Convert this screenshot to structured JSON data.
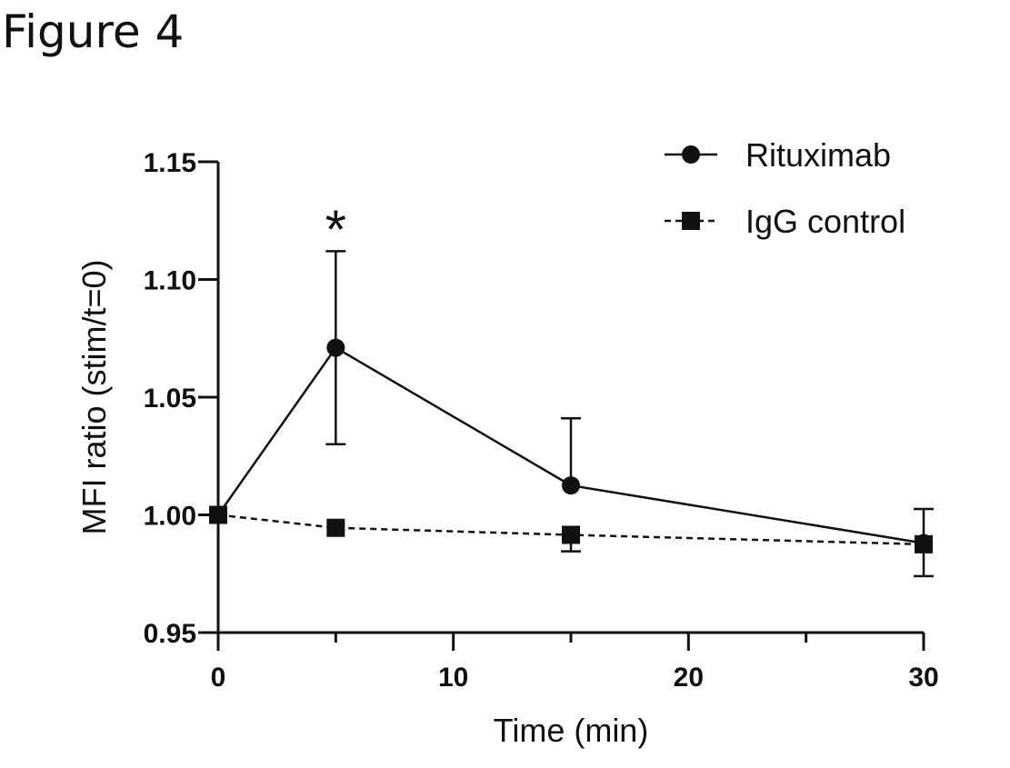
{
  "figure_title": "Figure 4",
  "chart_data": {
    "type": "line",
    "title": "",
    "xlabel": "Time (min)",
    "ylabel": "MFI ratio (stim/t=0)",
    "xlim": [
      0,
      30
    ],
    "ylim": [
      0.95,
      1.15
    ],
    "x_ticks": [
      0,
      10,
      20,
      30
    ],
    "x_tick_labels": [
      "0",
      "10",
      "20",
      "30"
    ],
    "x_minor_ticks": [
      5,
      15,
      25
    ],
    "y_ticks": [
      0.95,
      1.0,
      1.05,
      1.1,
      1.15
    ],
    "y_tick_labels": [
      "0.95",
      "1.00",
      "1.05",
      "1.10",
      "1.15"
    ],
    "legend_position": "top-right",
    "series": [
      {
        "name": "Rituximab",
        "marker": "circle",
        "line_style": "solid",
        "x": [
          0,
          5,
          15,
          30
        ],
        "values": [
          1.0,
          1.071,
          1.0125,
          0.988
        ],
        "err_upper": [
          null,
          1.112,
          1.041,
          null
        ],
        "err_lower": [
          null,
          1.03,
          null,
          null
        ]
      },
      {
        "name": "IgG control",
        "marker": "square",
        "line_style": "dashed",
        "x": [
          0,
          5,
          15,
          30
        ],
        "values": [
          1.0,
          0.9945,
          0.9915,
          0.9875
        ],
        "err_upper": [
          null,
          null,
          null,
          1.0025
        ],
        "err_lower": [
          null,
          null,
          0.9845,
          0.974
        ]
      }
    ],
    "annotations": [
      {
        "text": "*",
        "x": 5,
        "y": 1.128
      }
    ]
  }
}
